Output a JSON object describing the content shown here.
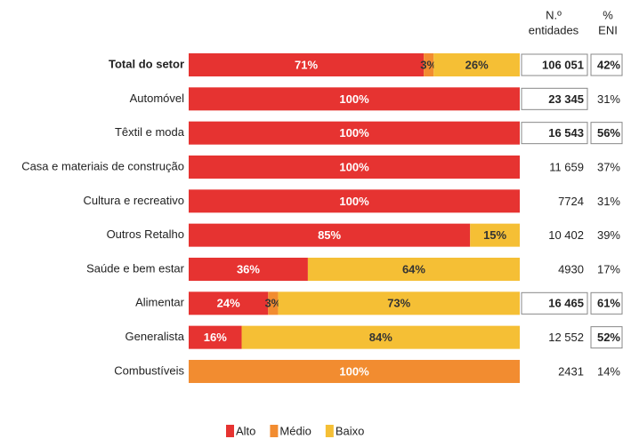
{
  "chart_data": {
    "type": "stacked-bar-horizontal",
    "categories": [
      "Total do setor",
      "Automóvel",
      "Têxtil e moda",
      "Casa e materiais de construção",
      "Cultura e recreativo",
      "Outros Retalho",
      "Saúde e bem estar",
      "Alimentar",
      "Generalista",
      "Combustíveis"
    ],
    "bold_categories": [
      0
    ],
    "xlim": [
      0,
      100
    ],
    "series": [
      {
        "name": "Alto",
        "color": "#e63331",
        "values": [
          71,
          100,
          100,
          100,
          100,
          85,
          36,
          24,
          16,
          0
        ],
        "value_labels": [
          "71%",
          "100%",
          "100%",
          "100%",
          "100%",
          "85%",
          "36%",
          "24%",
          "16%",
          null
        ]
      },
      {
        "name": "Médio",
        "color": "#f28c30",
        "values": [
          3,
          0,
          0,
          0,
          0,
          0,
          0,
          3,
          0,
          100
        ],
        "value_labels": [
          "3%",
          null,
          null,
          null,
          null,
          null,
          null,
          "3%",
          null,
          "100%"
        ]
      },
      {
        "name": "Baixo",
        "color": "#f5bf35",
        "values": [
          26,
          0,
          0,
          0,
          0,
          15,
          64,
          73,
          84,
          0
        ],
        "value_labels": [
          "26%",
          null,
          null,
          null,
          null,
          "15%",
          "64%",
          "73%",
          "84%",
          null
        ]
      }
    ],
    "columns": [
      {
        "header": [
          "N.º",
          "entidades"
        ],
        "values": [
          "106 051",
          "23 345",
          "16 543",
          "11 659",
          "7724",
          "10 402",
          "4930",
          "16 465",
          "12 552",
          "2431"
        ],
        "highlight": [
          true,
          true,
          true,
          false,
          false,
          false,
          false,
          true,
          false,
          false
        ]
      },
      {
        "header": [
          "%",
          "ENI"
        ],
        "values": [
          "42%",
          "31%",
          "56%",
          "37%",
          "31%",
          "39%",
          "17%",
          "61%",
          "52%",
          "14%"
        ],
        "highlight": [
          true,
          false,
          true,
          false,
          false,
          false,
          false,
          true,
          true,
          false
        ]
      }
    ],
    "legend": "bottom"
  }
}
